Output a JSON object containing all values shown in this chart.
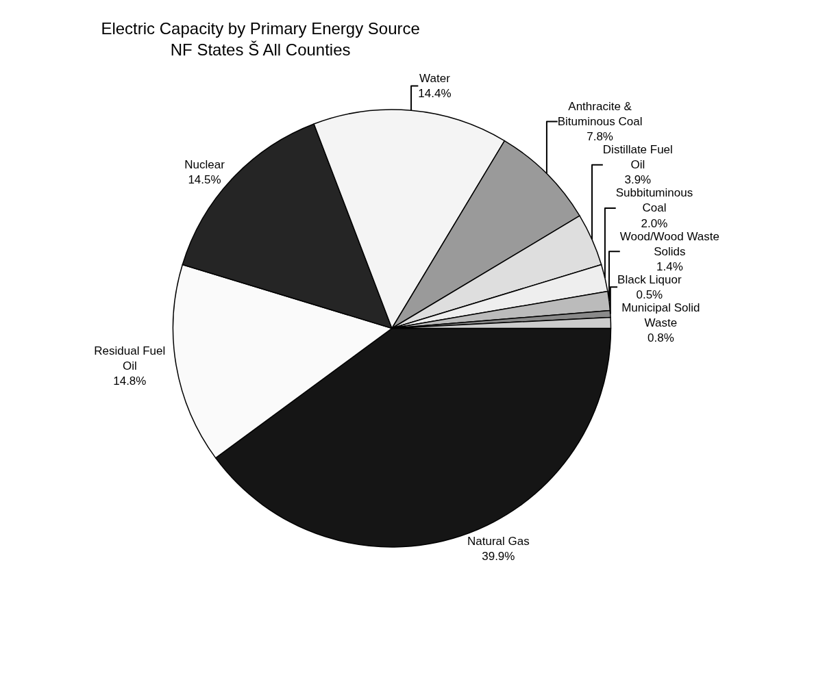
{
  "chart_data": {
    "type": "pie",
    "title": "Electric Capacity by Primary Energy Source\nNF States Š All Counties",
    "categories": [
      "Natural Gas",
      "Residual Fuel Oil",
      "Nuclear",
      "Water",
      "Anthracite & Bituminous Coal",
      "Distillate Fuel Oil",
      "Subbituminous Coal",
      "Wood/Wood Waste Solids",
      "Black Liquor",
      "Municipal Solid Waste"
    ],
    "values": [
      39.9,
      14.8,
      14.5,
      14.4,
      7.8,
      3.9,
      2.0,
      1.4,
      0.5,
      0.8
    ],
    "value_labels": [
      "39.9%",
      "14.8%",
      "14.5%",
      "14.4%",
      "7.8%",
      "3.9%",
      "2.0%",
      "1.4%",
      "0.5%",
      "0.8%"
    ],
    "colors": [
      "#151515",
      "#fafafa",
      "#252525",
      "#f4f4f4",
      "#9a9a9a",
      "#dedede",
      "#eeeeee",
      "#bbbbbb",
      "#8a8a8a",
      "#cccccc"
    ],
    "legend": false
  }
}
